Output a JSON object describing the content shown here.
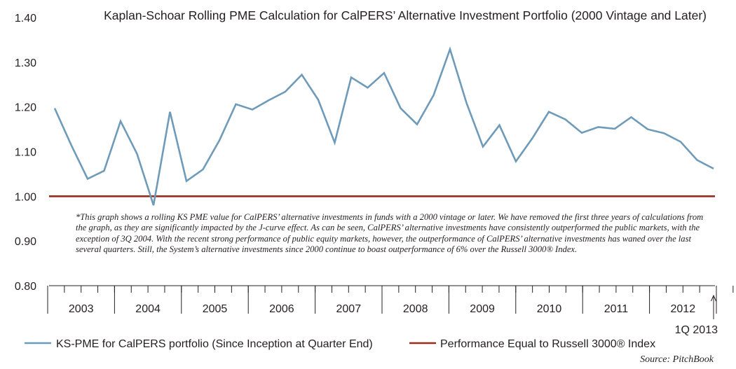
{
  "chart_data": {
    "type": "line",
    "title": "Kaplan-Schoar Rolling PME Calculation for CalPERS’ Alternative Investment Portfolio (2000 Vintage and Later)",
    "ylim": [
      0.8,
      1.4
    ],
    "yticks": [
      "0.80",
      "0.90",
      "1.00",
      "1.10",
      "1.20",
      "1.30",
      "1.40"
    ],
    "year_labels": [
      "2003",
      "2004",
      "2005",
      "2006",
      "2007",
      "2008",
      "2009",
      "2010",
      "2011",
      "2012"
    ],
    "series": [
      {
        "name": "KS-PME for CalPERS portfolio (Since Inception at Quarter End)",
        "color": "#6e9bb9",
        "values": [
          1.197,
          1.115,
          1.039,
          1.057,
          1.168,
          1.095,
          0.98,
          1.189,
          1.034,
          1.06,
          1.125,
          1.206,
          1.194,
          1.215,
          1.234,
          1.272,
          1.216,
          1.12,
          1.266,
          1.243,
          1.276,
          1.197,
          1.161,
          1.226,
          1.329,
          1.209,
          1.111,
          1.159,
          1.078,
          1.13,
          1.189,
          1.172,
          1.142,
          1.155,
          1.151,
          1.177,
          1.15,
          1.141,
          1.122,
          1.081,
          1.062
        ]
      },
      {
        "name": "Performance Equal to Russell 3000® Index",
        "color": "#9b2b1e",
        "value": 1.0
      }
    ],
    "annotation": "1Q 2013"
  },
  "note": "*This graph shows a rolling KS PME value for CalPERS’ alternative investments in funds with a 2000 vintage or later. We have removed the first three years of calculations from the graph, as they are significantly impacted by the J-curve effect. As can be seen, CalPERS’ alternative investments have consistently outperformed the public markets, with the exception of 3Q 2004. With the recent strong performance of public equity markets, however, the outperformance of CalPERS’ alternative investments has waned over the last several quarters. Still, the System’s alternative investments since 2000 continue to boast outperformance of 6% over the Russell 3000® Index.",
  "source": "Source: PitchBook"
}
